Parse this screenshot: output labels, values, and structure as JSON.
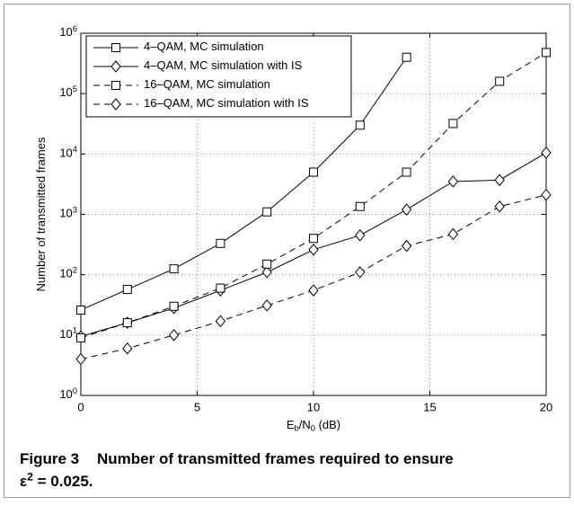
{
  "chart_data": {
    "type": "line",
    "x": [
      0,
      2,
      4,
      6,
      8,
      10,
      12,
      14,
      16,
      18,
      20
    ],
    "series": [
      {
        "name": "4–QAM, MC simulation",
        "color": "#000000",
        "dash": false,
        "marker": "square",
        "values": [
          26,
          57,
          125,
          330,
          1100,
          5000,
          30000,
          400000,
          null,
          null,
          null
        ]
      },
      {
        "name": "4–QAM, MC simulation with IS",
        "color": "#000000",
        "dash": false,
        "marker": "diamond",
        "values": [
          9.5,
          16,
          28,
          55,
          110,
          260,
          450,
          1200,
          3500,
          3700,
          10500
        ]
      },
      {
        "name": "16–QAM, MC simulation",
        "color": "#000000",
        "dash": true,
        "marker": "square",
        "values": [
          9,
          16,
          30,
          60,
          150,
          400,
          1350,
          5000,
          32000,
          160000,
          480000
        ]
      },
      {
        "name": "16–QAM, MC simulation with IS",
        "color": "#000000",
        "dash": true,
        "marker": "diamond",
        "values": [
          4,
          6,
          10,
          17,
          31,
          55,
          110,
          300,
          470,
          1350,
          2100
        ]
      }
    ],
    "xlabel": "E_b/N_0 (dB)",
    "ylabel": "Number of transmitted frames",
    "xlim": [
      0,
      20
    ],
    "xticks": [
      0,
      5,
      10,
      15,
      20
    ],
    "ylim": [
      1,
      1000000
    ],
    "yticks": [
      {
        "value": 1,
        "label": "10^0"
      },
      {
        "value": 10,
        "label": "10^1"
      },
      {
        "value": 100,
        "label": "10^2"
      },
      {
        "value": 1000,
        "label": "10^3"
      },
      {
        "value": 10000,
        "label": "10^4"
      },
      {
        "value": 100000,
        "label": "10^5"
      },
      {
        "value": 1000000,
        "label": "10^6"
      }
    ],
    "ylog": true,
    "grid": true,
    "legend": "upper-left"
  },
  "caption": {
    "label": "Figure 3",
    "text": "Number of transmitted frames required to ensure ε^2 = 0.025."
  }
}
